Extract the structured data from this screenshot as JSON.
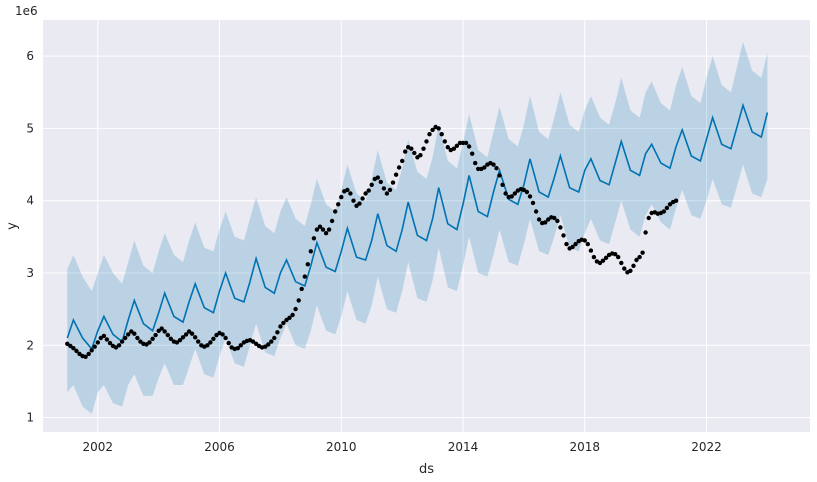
{
  "chart_data": {
    "type": "line",
    "xlabel": "ds",
    "ylabel": "y",
    "y_offset_label": "1e6",
    "y_scale": 1000000,
    "x_ticks": [
      2002,
      2006,
      2010,
      2014,
      2018,
      2022
    ],
    "y_ticks": [
      1,
      2,
      3,
      4,
      5,
      6
    ],
    "xlim": [
      2000.2,
      2025.4
    ],
    "ylim": [
      0.8,
      6.5
    ],
    "grid": true,
    "legend": "none",
    "colors": {
      "plot_background": "#eaeaf2",
      "forecast_line": "#0072b2",
      "uncertainty_band": "#0072b2",
      "observed_points": "#000000"
    },
    "series": [
      {
        "kind": "forecast",
        "x": [
          2001.0,
          2001.2,
          2001.5,
          2001.8,
          2002.0,
          2002.2,
          2002.5,
          2002.8,
          2003.0,
          2003.2,
          2003.5,
          2003.8,
          2004.0,
          2004.2,
          2004.5,
          2004.8,
          2005.0,
          2005.2,
          2005.5,
          2005.8,
          2006.0,
          2006.2,
          2006.5,
          2006.8,
          2007.0,
          2007.2,
          2007.5,
          2007.8,
          2008.0,
          2008.2,
          2008.5,
          2008.8,
          2009.0,
          2009.2,
          2009.5,
          2009.8,
          2010.0,
          2010.2,
          2010.5,
          2010.8,
          2011.0,
          2011.2,
          2011.5,
          2011.8,
          2012.0,
          2012.2,
          2012.5,
          2012.8,
          2013.0,
          2013.2,
          2013.5,
          2013.8,
          2014.0,
          2014.2,
          2014.5,
          2014.8,
          2015.0,
          2015.2,
          2015.5,
          2015.8,
          2016.0,
          2016.2,
          2016.5,
          2016.8,
          2017.0,
          2017.2,
          2017.5,
          2017.8,
          2018.0,
          2018.2,
          2018.5,
          2018.8,
          2019.0,
          2019.2,
          2019.5,
          2019.8,
          2020.0,
          2020.2,
          2020.5,
          2020.8,
          2021.0,
          2021.2,
          2021.5,
          2021.8,
          2022.0,
          2022.2,
          2022.5,
          2022.8,
          2023.0,
          2023.2,
          2023.5,
          2023.8,
          2024.0
        ],
        "yhat": [
          2.1,
          2.35,
          2.1,
          1.95,
          2.2,
          2.4,
          2.15,
          2.05,
          2.35,
          2.62,
          2.3,
          2.2,
          2.45,
          2.72,
          2.4,
          2.32,
          2.6,
          2.85,
          2.52,
          2.45,
          2.75,
          3.0,
          2.65,
          2.6,
          2.88,
          3.2,
          2.8,
          2.72,
          3.0,
          3.18,
          2.88,
          2.82,
          3.1,
          3.42,
          3.08,
          3.02,
          3.3,
          3.62,
          3.22,
          3.18,
          3.45,
          3.82,
          3.38,
          3.3,
          3.6,
          3.98,
          3.52,
          3.45,
          3.75,
          4.18,
          3.68,
          3.6,
          3.95,
          4.35,
          3.85,
          3.78,
          4.12,
          4.42,
          4.02,
          3.95,
          4.22,
          4.58,
          4.12,
          4.05,
          4.32,
          4.62,
          4.18,
          4.12,
          4.42,
          4.58,
          4.28,
          4.22,
          4.52,
          4.82,
          4.42,
          4.35,
          4.65,
          4.78,
          4.52,
          4.45,
          4.75,
          4.98,
          4.62,
          4.55,
          4.85,
          5.15,
          4.78,
          4.72,
          5.02,
          5.32,
          4.95,
          4.88,
          5.22
        ],
        "yhat_lower": [
          1.35,
          1.45,
          1.15,
          1.05,
          1.35,
          1.45,
          1.2,
          1.15,
          1.45,
          1.6,
          1.3,
          1.3,
          1.55,
          1.75,
          1.45,
          1.45,
          1.7,
          1.95,
          1.6,
          1.55,
          1.85,
          2.1,
          1.75,
          1.7,
          2.0,
          2.3,
          1.9,
          1.85,
          2.1,
          2.3,
          2.0,
          1.95,
          2.2,
          2.55,
          2.2,
          2.15,
          2.4,
          2.75,
          2.35,
          2.3,
          2.55,
          2.95,
          2.5,
          2.45,
          2.75,
          3.15,
          2.65,
          2.6,
          2.9,
          3.35,
          2.8,
          2.75,
          3.1,
          3.5,
          3.0,
          2.95,
          3.25,
          3.6,
          3.15,
          3.1,
          3.4,
          3.75,
          3.3,
          3.25,
          3.5,
          3.8,
          3.35,
          3.3,
          3.55,
          3.75,
          3.45,
          3.4,
          3.7,
          4.0,
          3.6,
          3.5,
          3.8,
          3.95,
          3.7,
          3.6,
          3.9,
          4.15,
          3.8,
          3.75,
          4.0,
          4.3,
          3.95,
          3.9,
          4.2,
          4.5,
          4.1,
          4.05,
          4.3
        ],
        "yhat_upper": [
          3.05,
          3.25,
          2.95,
          2.75,
          3.0,
          3.25,
          3.0,
          2.85,
          3.15,
          3.45,
          3.1,
          3.0,
          3.3,
          3.55,
          3.25,
          3.15,
          3.45,
          3.7,
          3.35,
          3.3,
          3.6,
          3.85,
          3.5,
          3.45,
          3.75,
          4.05,
          3.65,
          3.55,
          3.85,
          4.05,
          3.75,
          3.65,
          3.95,
          4.3,
          3.95,
          3.85,
          4.15,
          4.5,
          4.1,
          4.0,
          4.3,
          4.7,
          4.25,
          4.15,
          4.45,
          4.85,
          4.4,
          4.3,
          4.6,
          5.05,
          4.55,
          4.45,
          4.8,
          5.2,
          4.7,
          4.6,
          4.95,
          5.3,
          4.85,
          4.75,
          5.05,
          5.45,
          4.95,
          4.85,
          5.15,
          5.5,
          5.05,
          4.95,
          5.25,
          5.45,
          5.15,
          5.05,
          5.35,
          5.7,
          5.25,
          5.15,
          5.5,
          5.65,
          5.35,
          5.25,
          5.6,
          5.85,
          5.45,
          5.35,
          5.7,
          6.0,
          5.6,
          5.5,
          5.85,
          6.2,
          5.8,
          5.7,
          6.05
        ]
      },
      {
        "kind": "observed",
        "x": [
          2001.0,
          2001.1,
          2001.2,
          2001.3,
          2001.4,
          2001.5,
          2001.6,
          2001.7,
          2001.8,
          2001.9,
          2002.0,
          2002.1,
          2002.2,
          2002.3,
          2002.4,
          2002.5,
          2002.6,
          2002.7,
          2002.8,
          2002.9,
          2003.0,
          2003.1,
          2003.2,
          2003.3,
          2003.4,
          2003.5,
          2003.6,
          2003.7,
          2003.8,
          2003.9,
          2004.0,
          2004.1,
          2004.2,
          2004.3,
          2004.4,
          2004.5,
          2004.6,
          2004.7,
          2004.8,
          2004.9,
          2005.0,
          2005.1,
          2005.2,
          2005.3,
          2005.4,
          2005.5,
          2005.6,
          2005.7,
          2005.8,
          2005.9,
          2006.0,
          2006.1,
          2006.2,
          2006.3,
          2006.4,
          2006.5,
          2006.6,
          2006.7,
          2006.8,
          2006.9,
          2007.0,
          2007.1,
          2007.2,
          2007.3,
          2007.4,
          2007.5,
          2007.6,
          2007.7,
          2007.8,
          2007.9,
          2008.0,
          2008.1,
          2008.2,
          2008.3,
          2008.4,
          2008.5,
          2008.6,
          2008.7,
          2008.8,
          2008.9,
          2009.0,
          2009.1,
          2009.2,
          2009.3,
          2009.4,
          2009.5,
          2009.6,
          2009.7,
          2009.8,
          2009.9,
          2010.0,
          2010.1,
          2010.2,
          2010.3,
          2010.4,
          2010.5,
          2010.6,
          2010.7,
          2010.8,
          2010.9,
          2011.0,
          2011.1,
          2011.2,
          2011.3,
          2011.4,
          2011.5,
          2011.6,
          2011.7,
          2011.8,
          2011.9,
          2012.0,
          2012.1,
          2012.2,
          2012.3,
          2012.4,
          2012.5,
          2012.6,
          2012.7,
          2012.8,
          2012.9,
          2013.0,
          2013.1,
          2013.2,
          2013.3,
          2013.4,
          2013.5,
          2013.6,
          2013.7,
          2013.8,
          2013.9,
          2014.0,
          2014.1,
          2014.2,
          2014.3,
          2014.4,
          2014.5,
          2014.6,
          2014.7,
          2014.8,
          2014.9,
          2015.0,
          2015.1,
          2015.2,
          2015.3,
          2015.4,
          2015.5,
          2015.6,
          2015.7,
          2015.8,
          2015.9,
          2016.0,
          2016.1,
          2016.2,
          2016.3,
          2016.4,
          2016.5,
          2016.6,
          2016.7,
          2016.8,
          2016.9,
          2017.0,
          2017.1,
          2017.2,
          2017.3,
          2017.4,
          2017.5,
          2017.6,
          2017.7,
          2017.8,
          2017.9,
          2018.0,
          2018.1,
          2018.2,
          2018.3,
          2018.4,
          2018.5,
          2018.6,
          2018.7,
          2018.8,
          2018.9,
          2019.0,
          2019.1,
          2019.2,
          2019.3,
          2019.4,
          2019.5,
          2019.6,
          2019.7,
          2019.8,
          2019.9,
          2020.0,
          2020.1,
          2020.2,
          2020.3,
          2020.4,
          2020.5,
          2020.6,
          2020.7,
          2020.8,
          2020.9,
          2021.0
        ],
        "y": [
          2.02,
          1.99,
          1.96,
          1.92,
          1.88,
          1.85,
          1.84,
          1.88,
          1.93,
          1.98,
          2.04,
          2.1,
          2.13,
          2.08,
          2.03,
          1.99,
          1.97,
          2.0,
          2.05,
          2.1,
          2.15,
          2.19,
          2.16,
          2.1,
          2.05,
          2.02,
          2.01,
          2.04,
          2.09,
          2.14,
          2.2,
          2.23,
          2.19,
          2.14,
          2.09,
          2.05,
          2.04,
          2.07,
          2.11,
          2.15,
          2.19,
          2.16,
          2.11,
          2.05,
          2.0,
          1.98,
          2.0,
          2.04,
          2.09,
          2.14,
          2.17,
          2.15,
          2.1,
          2.03,
          1.97,
          1.95,
          1.96,
          2.0,
          2.04,
          2.06,
          2.07,
          2.05,
          2.02,
          1.99,
          1.97,
          1.98,
          2.01,
          2.05,
          2.1,
          2.18,
          2.26,
          2.31,
          2.35,
          2.38,
          2.42,
          2.5,
          2.62,
          2.78,
          2.95,
          3.12,
          3.3,
          3.48,
          3.6,
          3.64,
          3.6,
          3.55,
          3.6,
          3.72,
          3.85,
          3.95,
          4.05,
          4.13,
          4.15,
          4.1,
          4.0,
          3.93,
          3.96,
          4.03,
          4.1,
          4.14,
          4.22,
          4.3,
          4.32,
          4.26,
          4.17,
          4.1,
          4.15,
          4.25,
          4.36,
          4.46,
          4.55,
          4.68,
          4.74,
          4.72,
          4.66,
          4.6,
          4.63,
          4.72,
          4.82,
          4.92,
          4.98,
          5.02,
          5.0,
          4.92,
          4.82,
          4.74,
          4.7,
          4.72,
          4.76,
          4.8,
          4.8,
          4.8,
          4.75,
          4.65,
          4.52,
          4.44,
          4.44,
          4.46,
          4.5,
          4.52,
          4.5,
          4.45,
          4.35,
          4.22,
          4.1,
          4.05,
          4.06,
          4.1,
          4.14,
          4.16,
          4.15,
          4.12,
          4.06,
          3.97,
          3.85,
          3.74,
          3.69,
          3.7,
          3.74,
          3.77,
          3.76,
          3.72,
          3.63,
          3.52,
          3.4,
          3.34,
          3.36,
          3.4,
          3.44,
          3.46,
          3.45,
          3.4,
          3.31,
          3.22,
          3.16,
          3.14,
          3.17,
          3.21,
          3.25,
          3.27,
          3.26,
          3.22,
          3.14,
          3.06,
          3.01,
          3.03,
          3.1,
          3.18,
          3.22,
          3.28,
          3.56,
          3.76,
          3.83,
          3.84,
          3.82,
          3.83,
          3.85,
          3.9,
          3.95,
          3.98,
          4.0
        ]
      }
    ]
  }
}
